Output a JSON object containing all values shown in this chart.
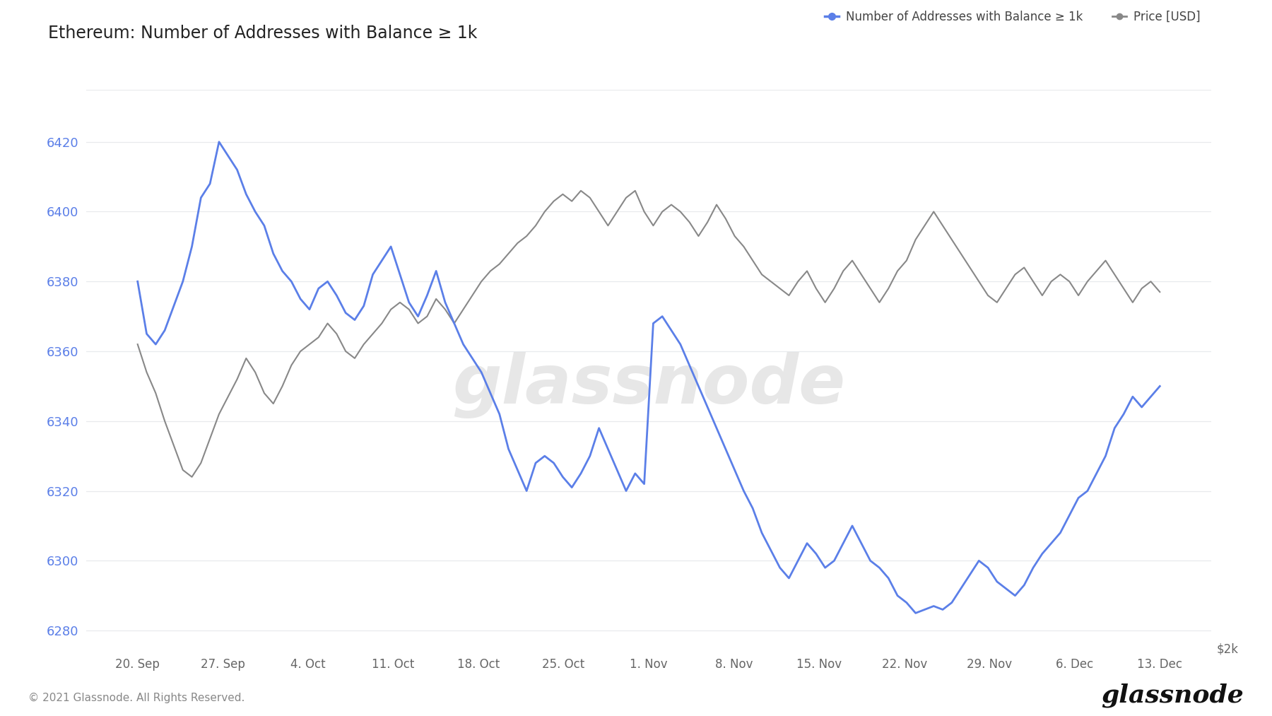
{
  "title": "Ethereum: Number of Addresses with Balance ≥ 1k",
  "legend_labels": [
    "Number of Addresses with Balance ≥ 1k",
    "Price [USD]"
  ],
  "blue_color": "#5b7fe8",
  "gray_color": "#888888",
  "background_color": "#ffffff",
  "grid_color": "#e8eaed",
  "ylabel_left_color": "#5b7fe8",
  "ylabel_right": "$2k",
  "ylim_left": [
    6275,
    6435
  ],
  "yticks_left": [
    6280,
    6300,
    6320,
    6340,
    6360,
    6380,
    6400,
    6420
  ],
  "footer_left": "© 2021 Glassnode. All Rights Reserved.",
  "watermark": "glassnode",
  "x_labels": [
    "20. Sep",
    "27. Sep",
    "4. Oct",
    "11. Oct",
    "18. Oct",
    "25. Oct",
    "1. Nov",
    "8. Nov",
    "15. Nov",
    "22. Nov",
    "29. Nov",
    "6. Dec",
    "13. Dec"
  ],
  "blue_data": [
    6380,
    6365,
    6362,
    6366,
    6373,
    6380,
    6390,
    6404,
    6408,
    6420,
    6416,
    6412,
    6405,
    6400,
    6396,
    6388,
    6383,
    6380,
    6375,
    6372,
    6378,
    6380,
    6376,
    6371,
    6369,
    6373,
    6382,
    6386,
    6390,
    6382,
    6374,
    6370,
    6376,
    6383,
    6374,
    6368,
    6362,
    6358,
    6354,
    6348,
    6342,
    6332,
    6326,
    6320,
    6328,
    6330,
    6328,
    6324,
    6321,
    6325,
    6330,
    6338,
    6332,
    6326,
    6320,
    6325,
    6322,
    6368,
    6370,
    6366,
    6362,
    6356,
    6350,
    6344,
    6338,
    6332,
    6326,
    6320,
    6315,
    6308,
    6303,
    6298,
    6295,
    6300,
    6305,
    6302,
    6298,
    6300,
    6305,
    6310,
    6305,
    6300,
    6298,
    6295,
    6290,
    6288,
    6285,
    6286,
    6287,
    6286,
    6288,
    6292,
    6296,
    6300,
    6298,
    6294,
    6292,
    6290,
    6293,
    6298,
    6302,
    6305,
    6308,
    6313,
    6318,
    6320,
    6325,
    6330,
    6338,
    6342,
    6347,
    6344,
    6347,
    6350
  ],
  "gray_data": [
    6362,
    6354,
    6348,
    6340,
    6333,
    6326,
    6324,
    6328,
    6335,
    6342,
    6347,
    6352,
    6358,
    6354,
    6348,
    6345,
    6350,
    6356,
    6360,
    6362,
    6364,
    6368,
    6365,
    6360,
    6358,
    6362,
    6365,
    6368,
    6372,
    6374,
    6372,
    6368,
    6370,
    6375,
    6372,
    6368,
    6372,
    6376,
    6380,
    6383,
    6385,
    6388,
    6391,
    6393,
    6396,
    6400,
    6403,
    6405,
    6403,
    6406,
    6404,
    6400,
    6396,
    6400,
    6404,
    6406,
    6400,
    6396,
    6400,
    6402,
    6400,
    6397,
    6393,
    6397,
    6402,
    6398,
    6393,
    6390,
    6386,
    6382,
    6380,
    6378,
    6376,
    6380,
    6383,
    6378,
    6374,
    6378,
    6383,
    6386,
    6382,
    6378,
    6374,
    6378,
    6383,
    6386,
    6392,
    6396,
    6400,
    6396,
    6392,
    6388,
    6384,
    6380,
    6376,
    6374,
    6378,
    6382,
    6384,
    6380,
    6376,
    6380,
    6382,
    6380,
    6376,
    6380,
    6383,
    6386,
    6382,
    6378,
    6374,
    6378,
    6380,
    6377
  ]
}
